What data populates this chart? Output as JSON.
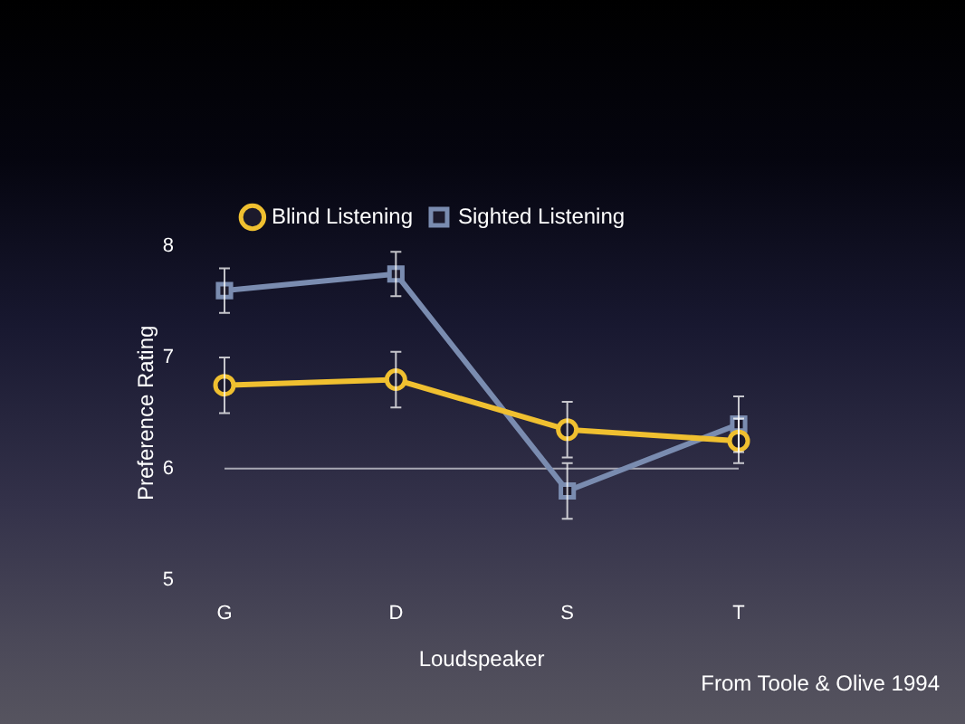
{
  "chart_data": {
    "type": "line",
    "xlabel": "Loudspeaker",
    "ylabel": "Preference Rating",
    "categories": [
      "G",
      "D",
      "S",
      "T"
    ],
    "series": [
      {
        "name": "Blind Listening",
        "color": "#f0c030",
        "marker": "circle",
        "values": [
          6.75,
          6.8,
          6.35,
          6.25
        ],
        "errors": [
          0.25,
          0.25,
          0.25,
          0.2
        ]
      },
      {
        "name": "Sighted Listening",
        "color": "#7a8cb0",
        "marker": "square",
        "values": [
          7.6,
          7.75,
          5.8,
          6.4
        ],
        "errors": [
          0.2,
          0.2,
          0.25,
          0.25
        ]
      }
    ],
    "ylim": [
      5,
      8
    ],
    "yticks": [
      5,
      6,
      7,
      8
    ],
    "grid": false,
    "legend": "top",
    "ref_lines": [
      {
        "axis": "y",
        "value": 6,
        "color": "#a8a8b4"
      }
    ],
    "annotations": [
      "From Toole & Olive 1994"
    ]
  }
}
